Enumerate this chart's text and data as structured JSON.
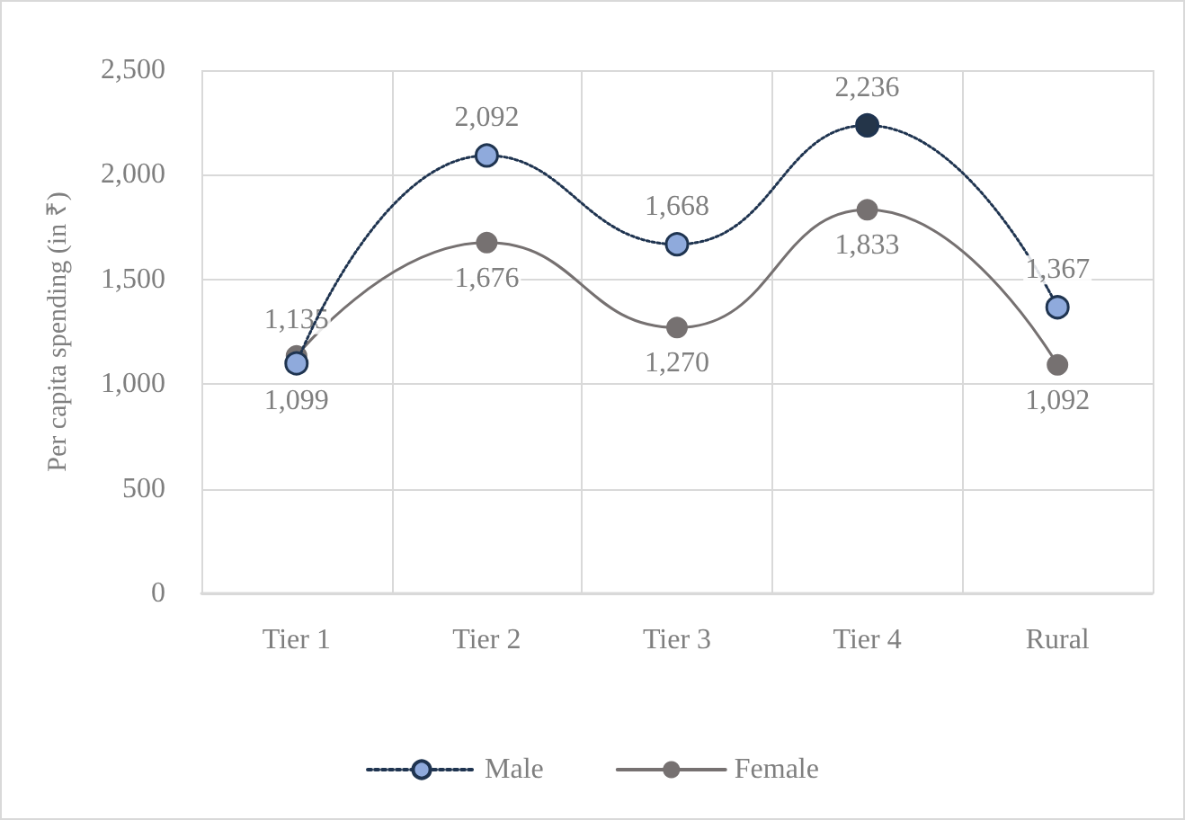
{
  "chart_data": {
    "type": "line",
    "ylabel": "Per capita spending (in ₹)",
    "categories": [
      "Tier 1",
      "Tier 2",
      "Tier 3",
      "Tier 4",
      "Rural"
    ],
    "series": [
      {
        "name": "Male",
        "color": "#1f3450",
        "colors": [
          "#8faadc",
          "#8faadc",
          "#8faadc",
          "#243549",
          "#8faadc"
        ],
        "values": [
          1099,
          2092,
          1668,
          2236,
          1367
        ],
        "value_labels": [
          "1,099",
          "2,092",
          "1,668",
          "2,236",
          "1,367"
        ],
        "line_style": "dotted",
        "marker": "circle"
      },
      {
        "name": "Female",
        "color": "#767171",
        "values": [
          1135,
          1676,
          1270,
          1833,
          1092
        ],
        "value_labels": [
          "1,135",
          "1,676",
          "1,270",
          "1,833",
          "1,092"
        ],
        "line_style": "solid",
        "marker": "circle"
      }
    ],
    "ylim": [
      0,
      2500
    ],
    "yticks": [
      0,
      500,
      {
        "value": 1000,
        "label": "1,000"
      },
      {
        "value": 1500,
        "label": "1,500"
      },
      {
        "value": 2000,
        "label": "2,000"
      },
      {
        "value": 2500,
        "label": "2,500"
      }
    ],
    "grid": true,
    "legend": "bottom"
  }
}
